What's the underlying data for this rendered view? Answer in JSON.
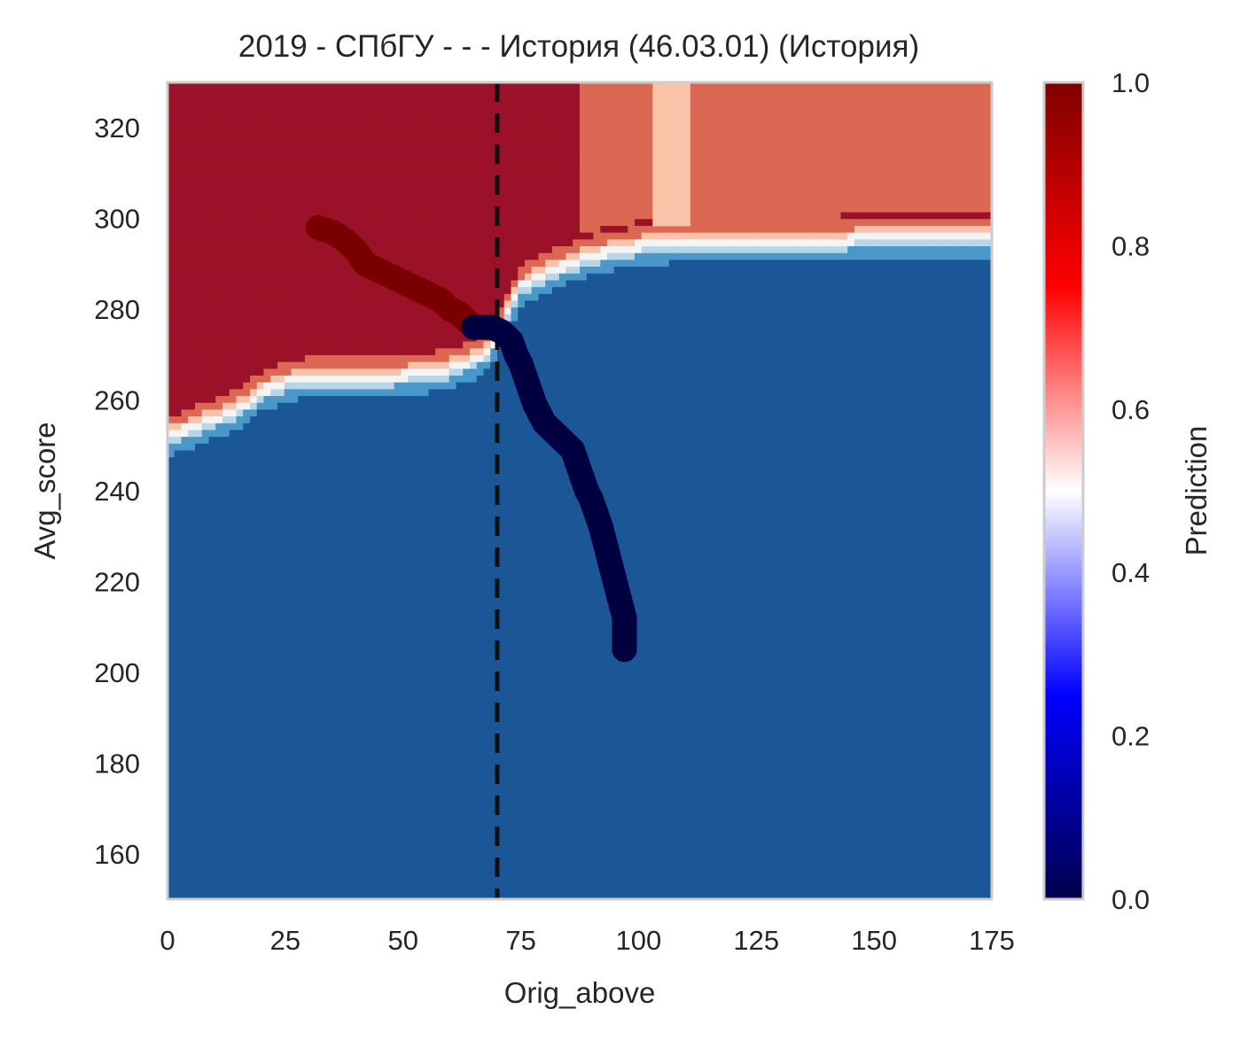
{
  "chart_data": {
    "type": "heatmap",
    "title": "2019 - СПбГУ - - - История (46.03.01) (История)",
    "xlabel": "Orig_above",
    "ylabel": "Avg_score",
    "xlim": [
      0,
      175
    ],
    "ylim": [
      150,
      330
    ],
    "x_ticks": [
      0,
      25,
      50,
      75,
      100,
      125,
      150,
      175
    ],
    "y_ticks": [
      160,
      180,
      200,
      220,
      240,
      260,
      280,
      300,
      320
    ],
    "grid": false,
    "colorbar": {
      "label": "Prediction",
      "range": [
        0,
        1
      ],
      "ticks": [
        "0.0",
        "0.2",
        "0.4",
        "0.6",
        "0.8",
        "1.0"
      ],
      "colormap": "seismic"
    },
    "decision_regions": {
      "description_levels": [
        0.1,
        0.2,
        0.3,
        0.45,
        0.55,
        0.7,
        0.8,
        0.9
      ],
      "boundary_curve_x": [
        0,
        5,
        10,
        15,
        20,
        25,
        30,
        35,
        40,
        45,
        50,
        55,
        60,
        65,
        68,
        70,
        72,
        75,
        80,
        85,
        90,
        100,
        110,
        120,
        130,
        140,
        150,
        160,
        175
      ],
      "boundary_curve_y": [
        252,
        254,
        256,
        258,
        262,
        264,
        265,
        265,
        265,
        265,
        265.5,
        266,
        267,
        269,
        271,
        274,
        279,
        285,
        288,
        290,
        292,
        294,
        295,
        295,
        295,
        295,
        296,
        296,
        296
      ],
      "boundary_sharpness": 2.5,
      "band_x": [
        103,
        111
      ],
      "upper_left_block_x_max": 87,
      "colors": {
        "very_low": "#1b5796",
        "low": "#4a97c9",
        "low_mid": "#b8d6e8",
        "neutral": "#f4f4f4",
        "high_mid": "#f9c3aa",
        "high": "#dc6854",
        "very_high": "#9b1128"
      }
    },
    "reference_line": {
      "x": 70,
      "style": "dashed",
      "color": "#111111"
    },
    "series": [
      {
        "color": "#7a0000",
        "x": [
          32,
          35,
          38,
          40,
          42,
          44,
          46,
          48,
          50,
          52,
          54,
          56,
          58,
          60,
          62,
          64
        ],
        "y": [
          298,
          297,
          295,
          293,
          290,
          289,
          288,
          287,
          286,
          285,
          284,
          283,
          282,
          280,
          279,
          277
        ]
      },
      {
        "color": "#000040",
        "x": [
          65,
          67,
          69,
          71,
          73,
          74,
          75,
          76,
          77,
          78,
          79,
          80,
          82,
          84,
          86,
          87,
          88,
          89,
          90,
          91,
          92,
          93,
          94,
          95,
          96,
          97,
          97
        ],
        "y": [
          276,
          276,
          276,
          275,
          273,
          270,
          268,
          265,
          262,
          259,
          257,
          255,
          253,
          251,
          249,
          246,
          243,
          240,
          238,
          235,
          232,
          228,
          224,
          220,
          216,
          212,
          205
        ]
      }
    ]
  }
}
